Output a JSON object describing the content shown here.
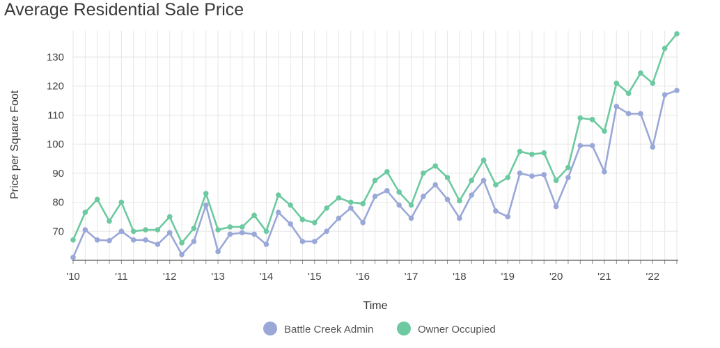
{
  "chart_data": {
    "type": "line",
    "title": "Average Residential Sale Price",
    "xlabel": "Time",
    "ylabel": "Price per Square Foot",
    "x_tick_labels": [
      "'10",
      "'11",
      "'12",
      "'13",
      "'14",
      "'15",
      "'16",
      "'17",
      "'18",
      "'19",
      "'20",
      "'21",
      "'22"
    ],
    "y_ticks": [
      70,
      80,
      90,
      100,
      110,
      120,
      130
    ],
    "ylim": [
      60,
      138
    ],
    "grid": true,
    "legend_position": "bottom-center",
    "x": [
      "2010-Q1",
      "2010-Q2",
      "2010-Q3",
      "2010-Q4",
      "2011-Q1",
      "2011-Q2",
      "2011-Q3",
      "2011-Q4",
      "2012-Q1",
      "2012-Q2",
      "2012-Q3",
      "2012-Q4",
      "2013-Q1",
      "2013-Q2",
      "2013-Q3",
      "2013-Q4",
      "2014-Q1",
      "2014-Q2",
      "2014-Q3",
      "2014-Q4",
      "2015-Q1",
      "2015-Q2",
      "2015-Q3",
      "2015-Q4",
      "2016-Q1",
      "2016-Q2",
      "2016-Q3",
      "2016-Q4",
      "2017-Q1",
      "2017-Q2",
      "2017-Q3",
      "2017-Q4",
      "2018-Q1",
      "2018-Q2",
      "2018-Q3",
      "2018-Q4",
      "2019-Q1",
      "2019-Q2",
      "2019-Q3",
      "2019-Q4",
      "2020-Q1",
      "2020-Q2",
      "2020-Q3",
      "2020-Q4",
      "2021-Q1",
      "2021-Q2",
      "2021-Q3",
      "2021-Q4",
      "2022-Q1",
      "2022-Q2",
      "2022-Q3"
    ],
    "series": [
      {
        "name": "Battle Creek Admin",
        "color": "#9aa8d8",
        "values": [
          61,
          70.5,
          67,
          66.8,
          70,
          67,
          67,
          65.5,
          69.5,
          62,
          66.5,
          79,
          63,
          69,
          69.5,
          69,
          65.5,
          76.5,
          72.5,
          66.5,
          66.5,
          70,
          74.5,
          78,
          73,
          82,
          84,
          79,
          74.5,
          82,
          86,
          81,
          74.5,
          82.5,
          87.5,
          77,
          75,
          90,
          89,
          89.5,
          78.5,
          88.5,
          99.5,
          99.5,
          90.5,
          113,
          110.5,
          110.5,
          99,
          117,
          118.5
        ]
      },
      {
        "name": "Owner Occupied",
        "color": "#6cc9a0",
        "values": [
          67,
          76.5,
          81,
          73.5,
          80,
          70,
          70.5,
          70.5,
          75,
          66,
          71,
          83,
          70.5,
          71.5,
          71.5,
          75.5,
          70,
          82.5,
          79,
          74,
          73,
          78,
          81.5,
          80,
          79.5,
          87.5,
          90.5,
          83.5,
          79,
          90,
          92.5,
          88.5,
          80.5,
          87.5,
          94.5,
          86,
          88.5,
          97.5,
          96.5,
          97,
          87.5,
          92,
          109,
          108.5,
          104.5,
          121,
          117.5,
          124.5,
          121,
          133,
          138
        ]
      }
    ]
  }
}
